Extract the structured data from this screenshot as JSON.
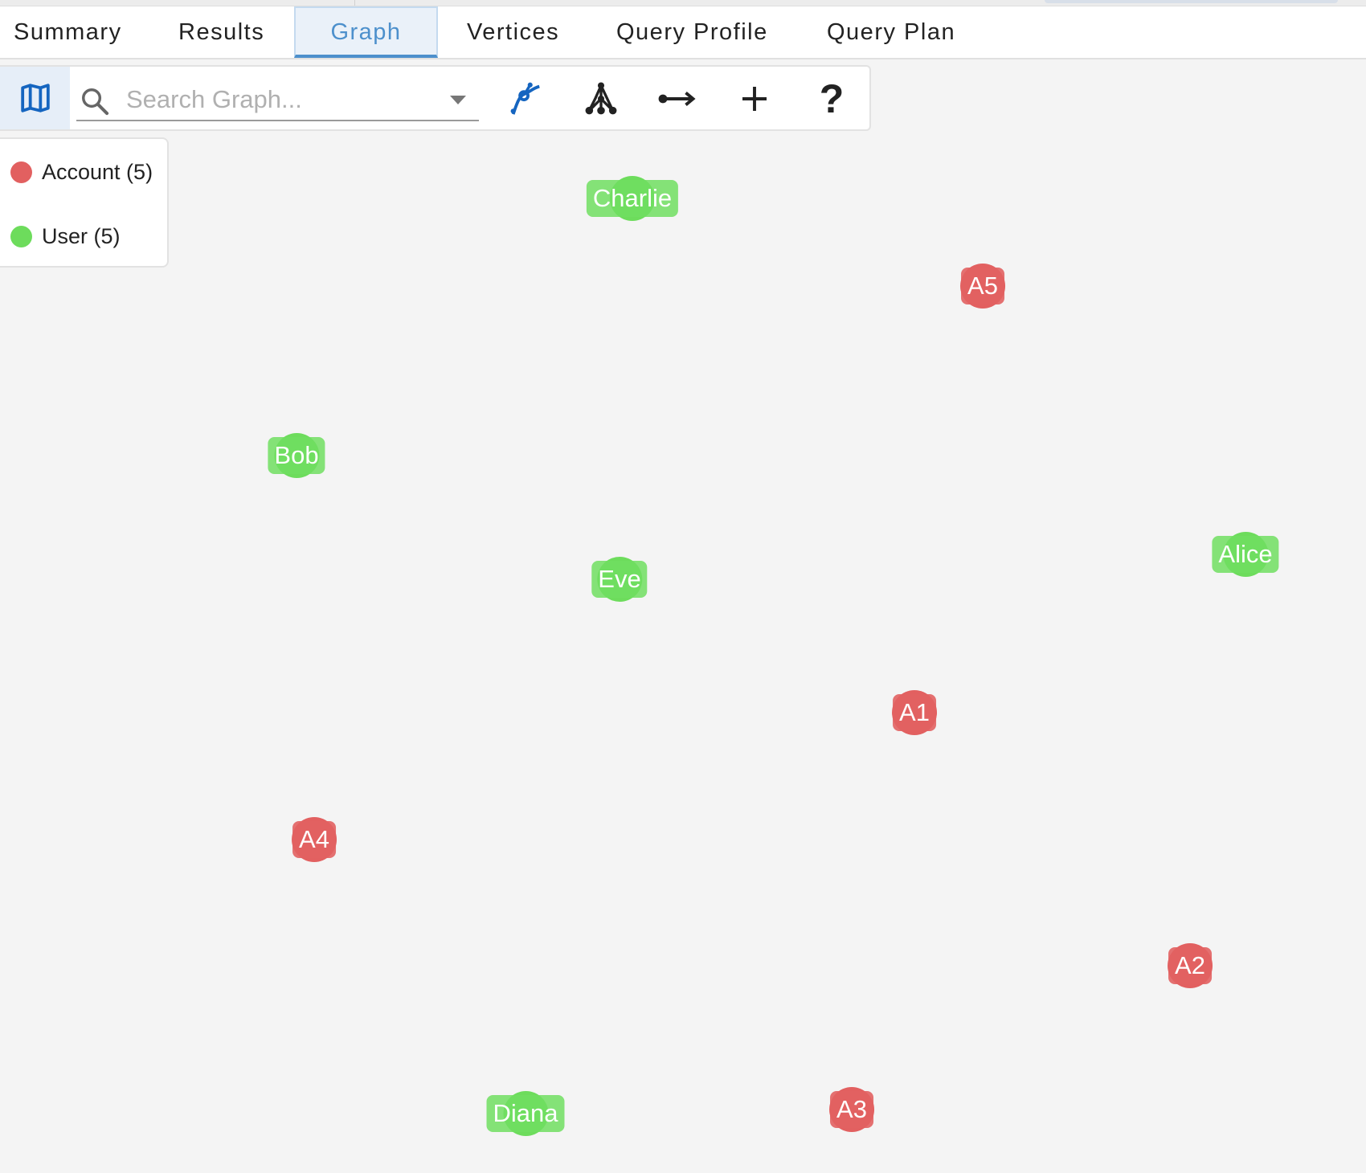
{
  "tabs": [
    {
      "label": "Summary"
    },
    {
      "label": "Results"
    },
    {
      "label": "Graph",
      "active": true
    },
    {
      "label": "Vertices"
    },
    {
      "label": "Query Profile"
    },
    {
      "label": "Query Plan"
    }
  ],
  "toolbar": {
    "map_icon": "map-icon",
    "search_placeholder": "Search Graph...",
    "search_value": "",
    "buttons": [
      {
        "icon": "path-icon",
        "color": "#1565c0"
      },
      {
        "icon": "hierarchy-icon"
      },
      {
        "icon": "edge-arrow-icon"
      },
      {
        "icon": "plus-icon"
      },
      {
        "icon": "help-icon"
      }
    ]
  },
  "legend": [
    {
      "label": "Account (5)",
      "color": "#e26060"
    },
    {
      "label": "User (5)",
      "color": "#6ddc5c"
    }
  ],
  "colors": {
    "accent": "#4d90cc",
    "account": "#e26060",
    "user": "#6ddc5c"
  },
  "nodes": [
    {
      "label": "Charlie",
      "type": "user"
    },
    {
      "label": "A5",
      "type": "account"
    },
    {
      "label": "Bob",
      "type": "user"
    },
    {
      "label": "Eve",
      "type": "user"
    },
    {
      "label": "Alice",
      "type": "user"
    },
    {
      "label": "A1",
      "type": "account"
    },
    {
      "label": "A4",
      "type": "account"
    },
    {
      "label": "A2",
      "type": "account"
    },
    {
      "label": "Diana",
      "type": "user"
    },
    {
      "label": "A3",
      "type": "account"
    }
  ]
}
